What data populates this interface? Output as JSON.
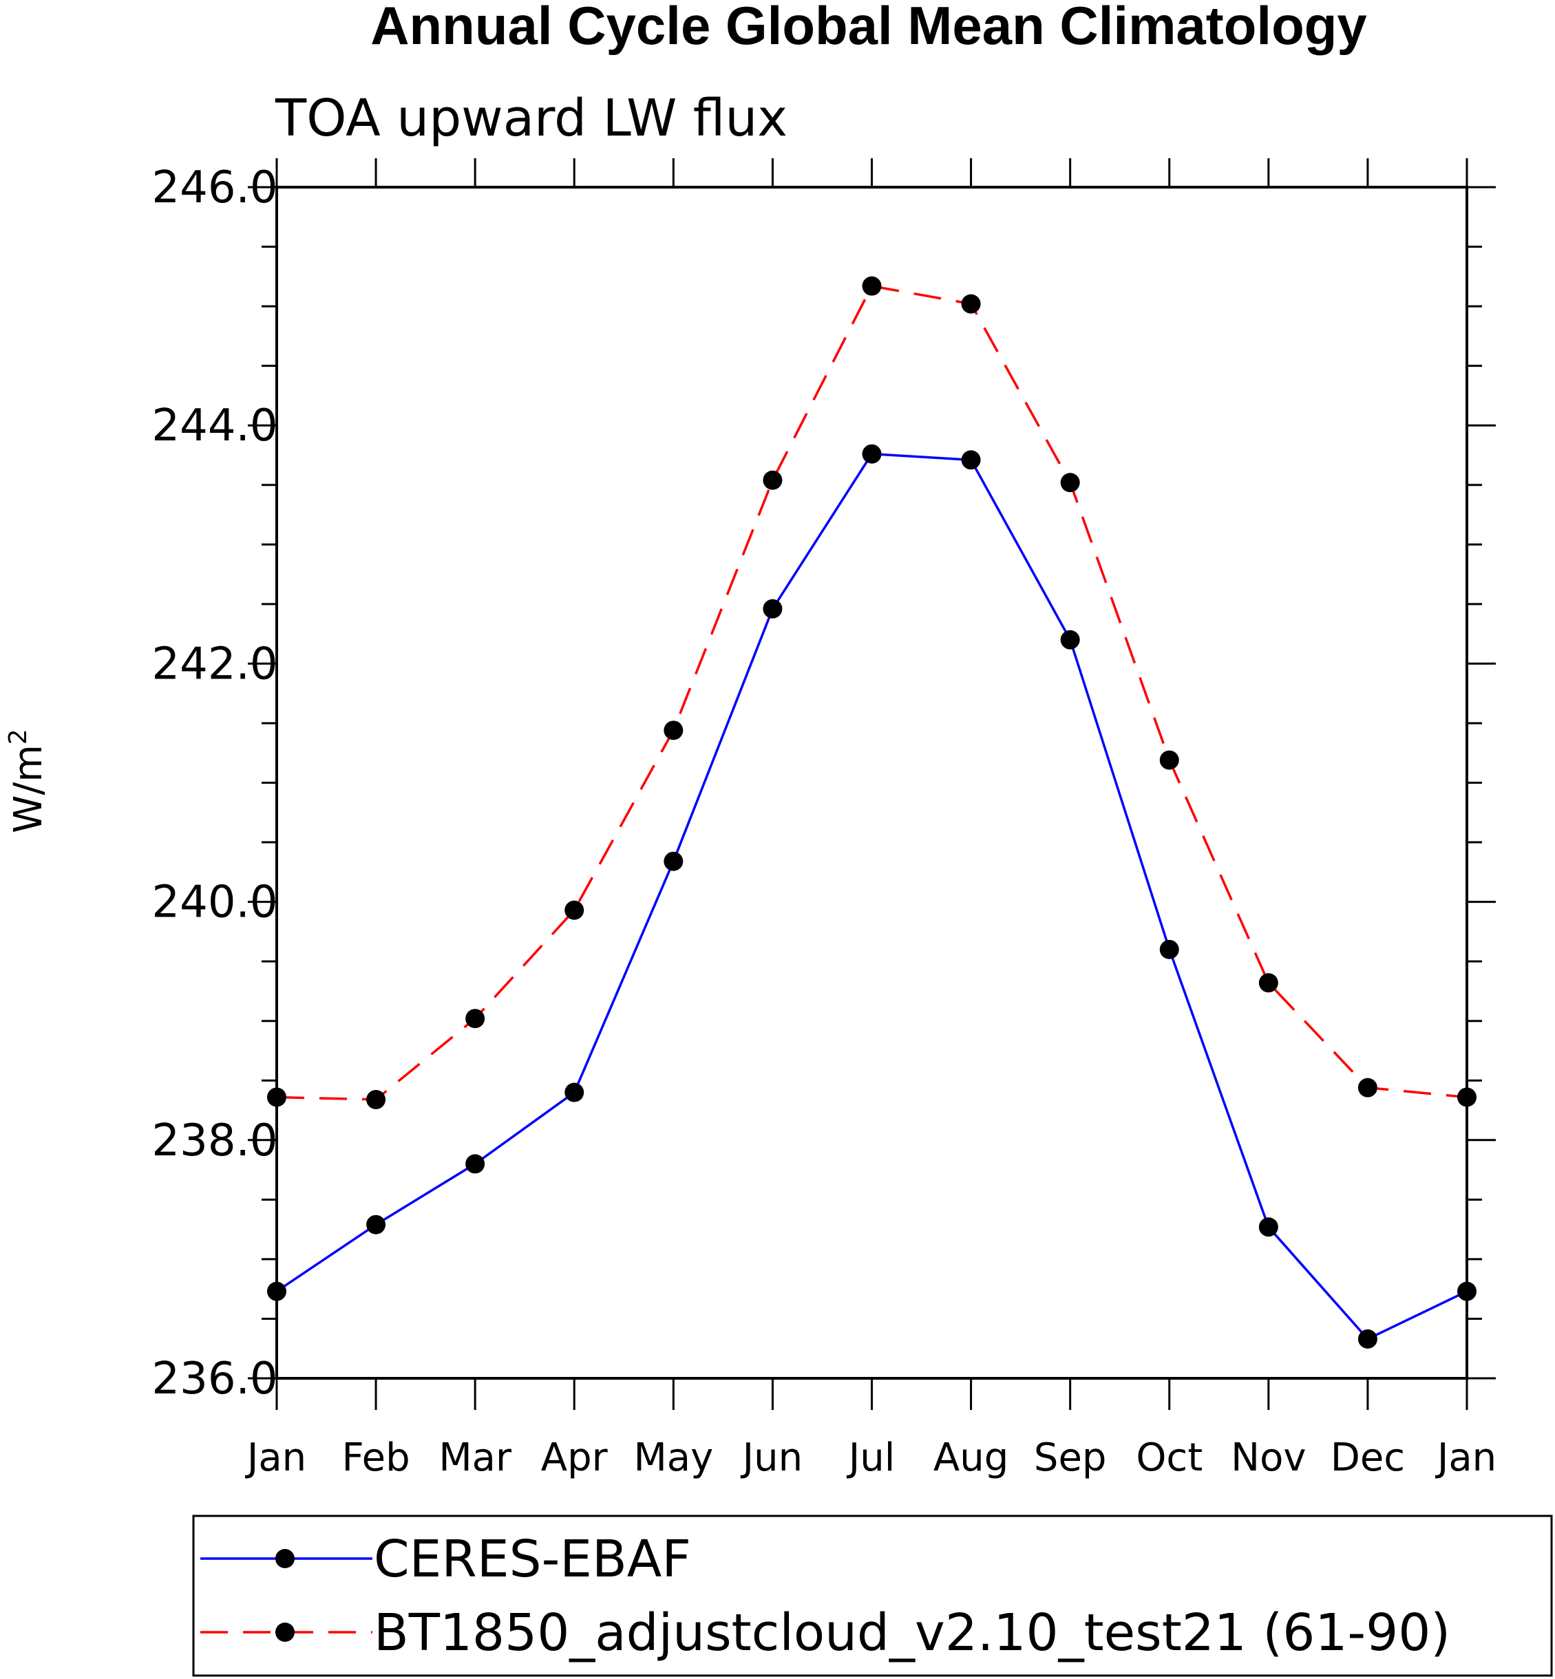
{
  "chart_data": {
    "type": "line",
    "title": "Annual Cycle Global Mean Climatology",
    "subtitle": "TOA upward LW flux",
    "ylabel": "W/m",
    "ylabel_superscript": "2",
    "xlabel": "",
    "categories": [
      "Jan",
      "Feb",
      "Mar",
      "Apr",
      "May",
      "Jun",
      "Jul",
      "Aug",
      "Sep",
      "Oct",
      "Nov",
      "Dec",
      "Jan"
    ],
    "ylim": [
      236.0,
      246.0
    ],
    "yticks": [
      "236.0",
      "238.0",
      "240.0",
      "242.0",
      "244.0",
      "246.0"
    ],
    "series": [
      {
        "name": "CERES-EBAF",
        "color": "#0000ff",
        "style": "solid",
        "values": [
          236.73,
          237.29,
          237.8,
          238.4,
          240.34,
          242.46,
          243.76,
          243.71,
          242.2,
          239.6,
          237.27,
          236.33,
          236.73
        ]
      },
      {
        "name": "BT1850_adjustcloud_v2.10_test21 (61-90)",
        "color": "#ff0000",
        "style": "dashed",
        "values": [
          238.36,
          238.34,
          239.02,
          239.93,
          241.44,
          243.54,
          245.17,
          245.02,
          243.52,
          241.19,
          239.32,
          238.44,
          238.36
        ]
      }
    ],
    "legend_position": "bottom"
  }
}
